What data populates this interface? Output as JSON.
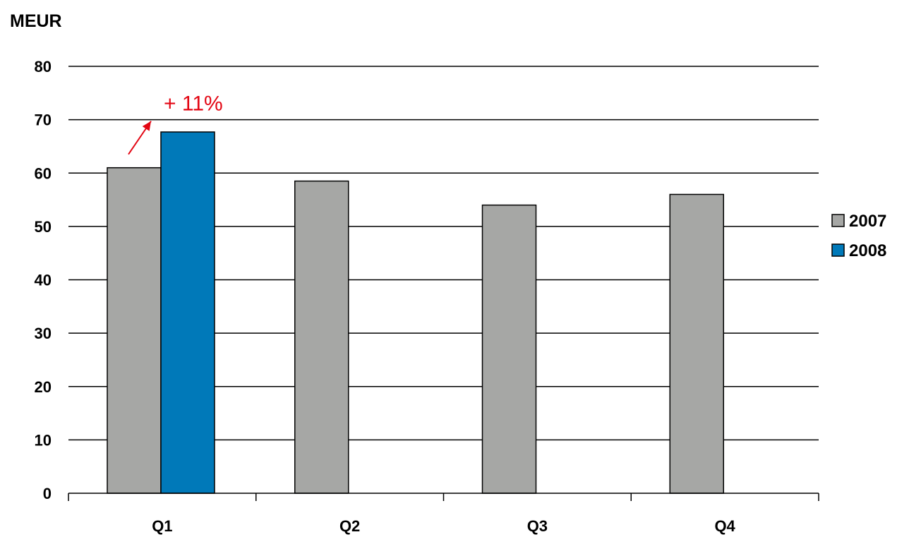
{
  "chart_data": {
    "type": "bar",
    "unit_label": "MEUR",
    "categories": [
      "Q1",
      "Q2",
      "Q3",
      "Q4"
    ],
    "series": [
      {
        "name": "2007",
        "values": [
          61,
          58.5,
          54,
          56
        ],
        "color": "#a6a7a5"
      },
      {
        "name": "2008",
        "values": [
          67.7,
          null,
          null,
          null
        ],
        "color": "#0079b9"
      }
    ],
    "ylim": [
      0,
      80
    ],
    "yticks": [
      0,
      10,
      20,
      30,
      40,
      50,
      60,
      70,
      80
    ],
    "grid": true,
    "legend_position": "right",
    "annotation": {
      "text": "+ 11%",
      "category": "Q1",
      "color": "#e30613"
    }
  }
}
